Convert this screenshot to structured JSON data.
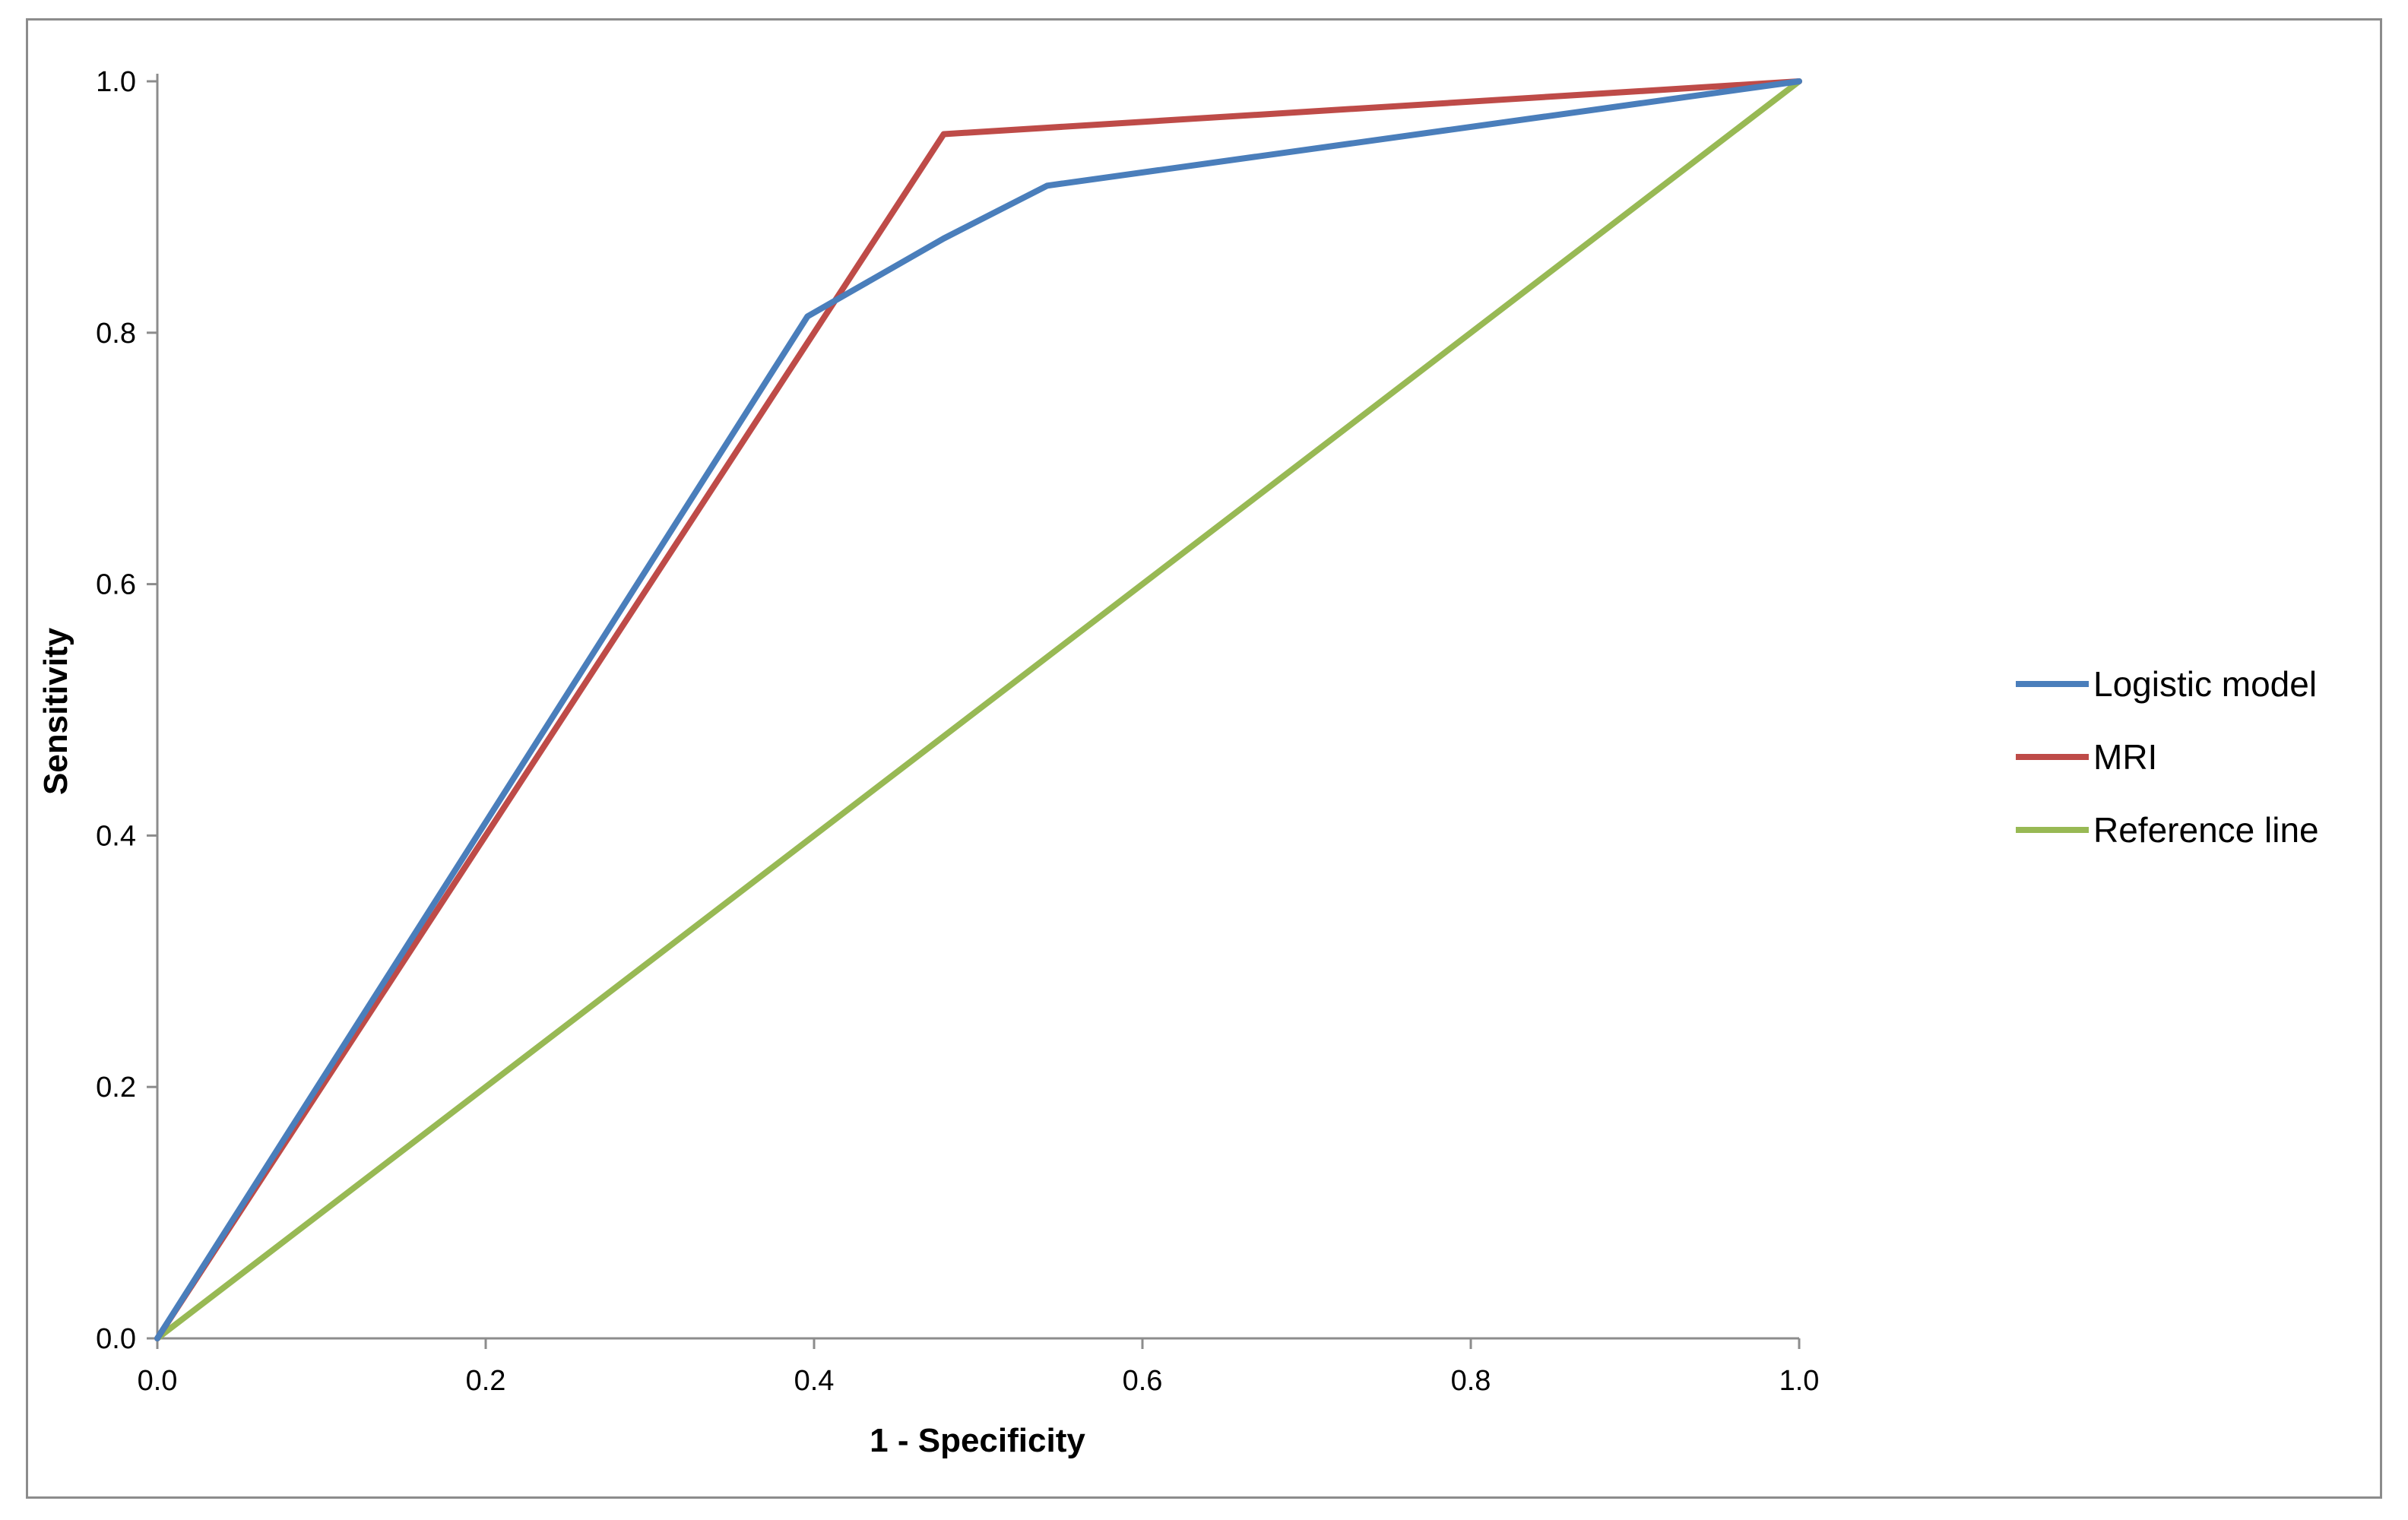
{
  "chart_data": {
    "type": "line",
    "title": "",
    "xlabel": "1 - Specificity",
    "ylabel": "Sensitivity",
    "xlim": [
      0.0,
      1.0
    ],
    "ylim": [
      0.0,
      1.0
    ],
    "xticks": [
      "0.0",
      "0.2",
      "0.4",
      "0.6",
      "0.8",
      "1.0"
    ],
    "yticks": [
      "0.0",
      "0.2",
      "0.4",
      "0.6",
      "0.8",
      "1.0"
    ],
    "grid": false,
    "legend_position": "right",
    "series": [
      {
        "name": "Logistic model",
        "color": "#4a7ebb",
        "x": [
          0.0,
          0.396,
          0.479,
          0.542,
          1.0
        ],
        "y": [
          0.0,
          0.813,
          0.875,
          0.917,
          1.0
        ]
      },
      {
        "name": "MRI",
        "color": "#be4b48",
        "x": [
          0.0,
          0.479,
          1.0
        ],
        "y": [
          0.0,
          0.958,
          1.0
        ]
      },
      {
        "name": "Reference line",
        "color": "#98b954",
        "x": [
          0.0,
          1.0
        ],
        "y": [
          0.0,
          1.0
        ]
      }
    ]
  }
}
